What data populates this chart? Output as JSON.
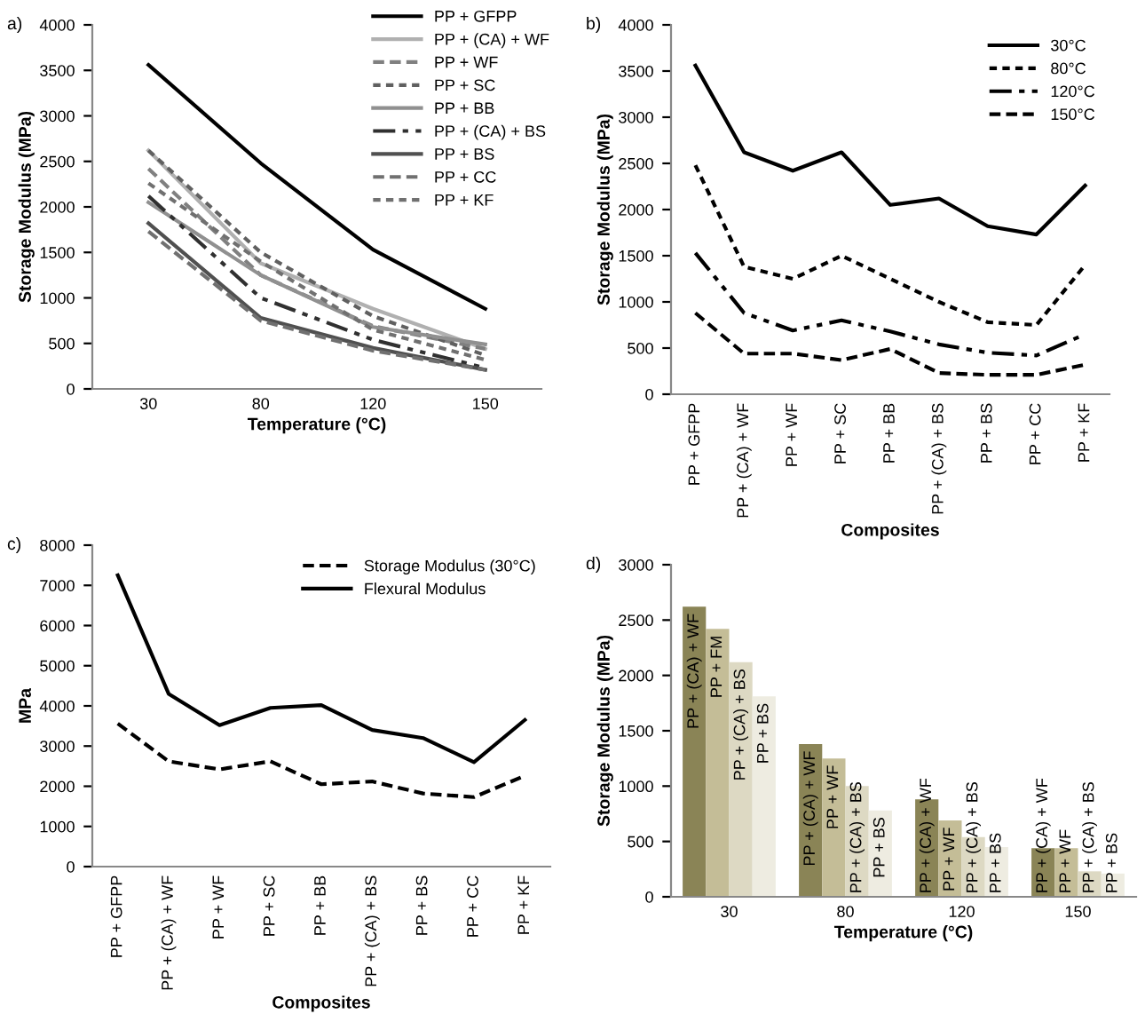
{
  "chart_data": [
    {
      "type": "line",
      "annotations": [
        "a)"
      ],
      "xlabel": "Temperature (°C)",
      "ylabel": "Storage Modulus (MPa)",
      "categories": [
        "30",
        "80",
        "120",
        "150"
      ],
      "ylim": [
        0,
        4000
      ],
      "yticks": [
        0,
        500,
        1000,
        1500,
        2000,
        2500,
        3000,
        3500,
        4000
      ],
      "legend": "top right",
      "series": [
        {
          "name": "PP + GFPP",
          "color": "#000000",
          "line_style": "solid",
          "values": [
            3560,
            2480,
            1530,
            880
          ]
        },
        {
          "name": "PP + (CA) + WF",
          "color": "#b0b0b0",
          "line_style": "solid",
          "values": [
            2620,
            1380,
            880,
            440
          ]
        },
        {
          "name": "PP + WF",
          "color": "#808080",
          "line_style": "dashed",
          "values": [
            2420,
            1250,
            690,
            440
          ]
        },
        {
          "name": "PP + SC",
          "color": "#606060",
          "line_style": "dotted",
          "values": [
            2620,
            1500,
            800,
            370
          ]
        },
        {
          "name": "PP + BB",
          "color": "#909090",
          "line_style": "solid",
          "values": [
            2050,
            1250,
            680,
            490
          ]
        },
        {
          "name": "PP + (CA) + BS",
          "color": "#303030",
          "line_style": "dashdot",
          "values": [
            2120,
            1000,
            540,
            230
          ]
        },
        {
          "name": "PP + BS",
          "color": "#505050",
          "line_style": "solid",
          "values": [
            1820,
            780,
            450,
            210
          ]
        },
        {
          "name": "PP + CC",
          "color": "#707070",
          "line_style": "dashed",
          "values": [
            1730,
            750,
            420,
            210
          ]
        },
        {
          "name": "PP + KF",
          "color": "#707070",
          "line_style": "dotted",
          "values": [
            2260,
            1400,
            650,
            320
          ]
        }
      ]
    },
    {
      "type": "line",
      "annotations": [
        "b)"
      ],
      "xlabel": "Composites",
      "ylabel": "Storage Modulus (MPa)",
      "categories": [
        "PP + GFPP",
        "PP + (CA) + WF",
        "PP + WF",
        "PP + SC",
        "PP + BB",
        "PP + (CA) + BS",
        "PP + BS",
        "PP + CC",
        "PP + KF"
      ],
      "ylim": [
        0,
        4000
      ],
      "yticks": [
        0,
        500,
        1000,
        1500,
        2000,
        2500,
        3000,
        3500,
        4000
      ],
      "legend": "top right",
      "series": [
        {
          "name": "30°C",
          "color": "#000000",
          "line_style": "solid",
          "values": [
            3560,
            2620,
            2420,
            2620,
            2050,
            2120,
            1820,
            1730,
            2260
          ]
        },
        {
          "name": "80°C",
          "color": "#000000",
          "line_style": "dotted",
          "values": [
            2480,
            1380,
            1250,
            1500,
            1250,
            1000,
            780,
            750,
            1400
          ]
        },
        {
          "name": "120°C",
          "color": "#000000",
          "line_style": "dashdot",
          "values": [
            1530,
            880,
            690,
            800,
            680,
            540,
            450,
            420,
            650
          ]
        },
        {
          "name": "150°C",
          "color": "#000000",
          "line_style": "dashed",
          "values": [
            880,
            440,
            440,
            370,
            490,
            230,
            210,
            210,
            320
          ]
        }
      ]
    },
    {
      "type": "line",
      "annotations": [
        "c)"
      ],
      "xlabel": "Composites",
      "ylabel": "MPa",
      "categories": [
        "PP + GFPP",
        "PP + (CA) + WF",
        "PP + WF",
        "PP + SC",
        "PP + BB",
        "PP + (CA) + BS",
        "PP + BS",
        "PP + CC",
        "PP + KF"
      ],
      "ylim": [
        0,
        8000
      ],
      "yticks": [
        0,
        1000,
        2000,
        3000,
        4000,
        5000,
        6000,
        7000,
        8000
      ],
      "legend": "top right",
      "series": [
        {
          "name": "Storage Modulus (30°C)",
          "color": "#000000",
          "line_style": "dashed",
          "values": [
            3560,
            2620,
            2420,
            2620,
            2050,
            2120,
            1820,
            1730,
            2260
          ]
        },
        {
          "name": "Flexural Modulus",
          "color": "#000000",
          "line_style": "solid",
          "values": [
            7250,
            4300,
            3520,
            3950,
            4020,
            3400,
            3200,
            2600,
            3650
          ]
        }
      ]
    },
    {
      "type": "bar",
      "annotations": [
        "d)"
      ],
      "xlabel": "Temperature (°C)",
      "ylabel": "Storage Modulus (MPa)",
      "categories": [
        "30",
        "80",
        "120",
        "150"
      ],
      "ylim": [
        0,
        3000
      ],
      "yticks": [
        0,
        500,
        1000,
        1500,
        2000,
        2500,
        3000
      ],
      "series": [
        {
          "color": "#8a8456",
          "values": [
            2620,
            1380,
            880,
            440
          ],
          "value_labels": [
            "PP + (CA) + WF",
            "PP + (CA) + WF",
            "PP + (CA) + WF",
            "PP + (CA) + WF"
          ]
        },
        {
          "color": "#c4bd97",
          "values": [
            2420,
            1250,
            690,
            440
          ],
          "value_labels": [
            "PP + FM",
            "PP + WF",
            "PP + WF",
            "PP + WF"
          ]
        },
        {
          "color": "#ddd9c3",
          "values": [
            2120,
            1000,
            540,
            230
          ],
          "value_labels": [
            "PP + (CA) + BS",
            "PP + (CA) + BS",
            "PP + (CA) + BS",
            "PP + (CA) + BS"
          ]
        },
        {
          "color": "#eeece1",
          "values": [
            1810,
            780,
            450,
            210
          ],
          "value_labels": [
            "PP + BS",
            "PP + BS",
            "PP + BS",
            "PP + BS"
          ]
        }
      ]
    }
  ]
}
